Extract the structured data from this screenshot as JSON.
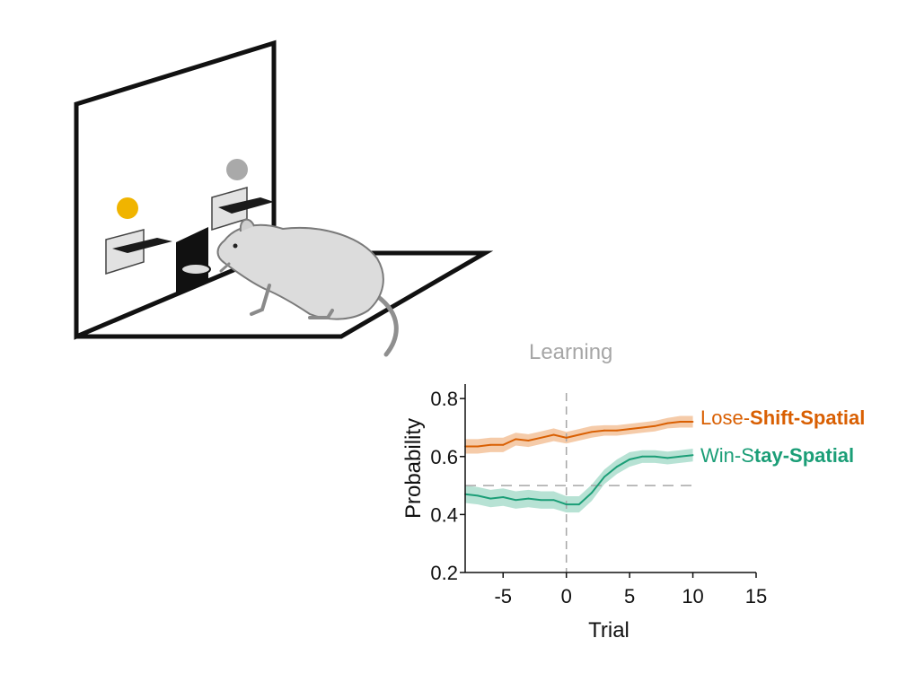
{
  "chart_data": {
    "type": "line",
    "xlabel": "Trial",
    "ylabel": "Probability",
    "xlim": [
      -8,
      15
    ],
    "ylim": [
      0.2,
      0.85
    ],
    "xticks": [
      -5,
      0,
      5,
      10,
      15
    ],
    "xtick_labels": [
      "-5",
      "0",
      "5",
      "10",
      "15"
    ],
    "yticks": [
      0.2,
      0.4,
      0.6,
      0.8
    ],
    "ytick_labels": [
      "0.2",
      "0.4",
      "0.6",
      "0.8"
    ],
    "grid": false,
    "reference_lines": {
      "vertical": {
        "x": 0,
        "label": "Learning",
        "color": "#a6a6a6"
      },
      "horizontal": {
        "y": 0.5,
        "color": "#a6a6a6"
      }
    },
    "series": [
      {
        "name_parts": [
          "Lose-",
          "Shift-Spatial"
        ],
        "color": "#d95f02",
        "band_color": "#f2b98c",
        "x": [
          -8,
          -7,
          -6,
          -5,
          -4,
          -3,
          -2,
          -1,
          0,
          1,
          2,
          3,
          4,
          5,
          6,
          7,
          8,
          9,
          10
        ],
        "y": [
          0.635,
          0.635,
          0.64,
          0.64,
          0.66,
          0.655,
          0.665,
          0.675,
          0.665,
          0.675,
          0.685,
          0.69,
          0.69,
          0.695,
          0.7,
          0.705,
          0.715,
          0.72,
          0.72
        ],
        "err": [
          0.025,
          0.025,
          0.025,
          0.025,
          0.022,
          0.022,
          0.022,
          0.022,
          0.02,
          0.02,
          0.02,
          0.018,
          0.018,
          0.018,
          0.018,
          0.018,
          0.018,
          0.02,
          0.02
        ]
      },
      {
        "name_parts": [
          "Win-S",
          "tay-Spatial"
        ],
        "color": "#1b9e77",
        "band_color": "#9fd8c6",
        "x": [
          -8,
          -7,
          -6,
          -5,
          -4,
          -3,
          -2,
          -1,
          0,
          1,
          2,
          3,
          4,
          5,
          6,
          7,
          8,
          9,
          10
        ],
        "y": [
          0.47,
          0.465,
          0.455,
          0.46,
          0.45,
          0.455,
          0.45,
          0.45,
          0.435,
          0.435,
          0.475,
          0.53,
          0.565,
          0.59,
          0.6,
          0.6,
          0.595,
          0.6,
          0.605
        ],
        "err": [
          0.03,
          0.03,
          0.03,
          0.03,
          0.03,
          0.03,
          0.03,
          0.03,
          0.028,
          0.028,
          0.028,
          0.025,
          0.025,
          0.025,
          0.022,
          0.022,
          0.022,
          0.022,
          0.022
        ]
      }
    ]
  },
  "illustration": {
    "cue_colors": {
      "left_light": "#f0b400",
      "right_light": "#a9a9a9"
    }
  }
}
